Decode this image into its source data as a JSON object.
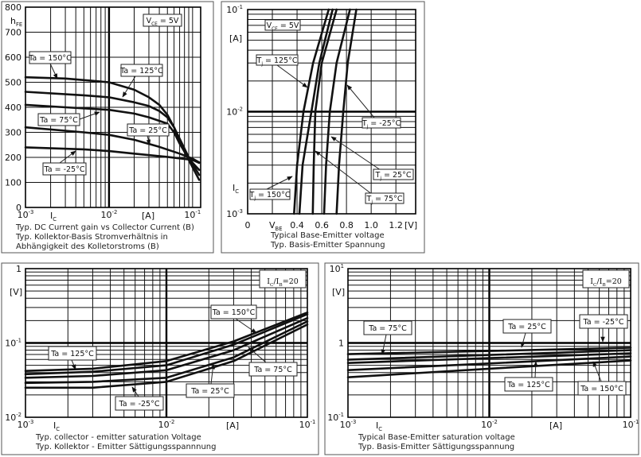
{
  "chart_data": [
    {
      "type": "line",
      "xscale": "log",
      "yscale": "linear",
      "xlim": [
        0.001,
        0.125
      ],
      "ylim": [
        0,
        800
      ],
      "grid": true,
      "xlabel": [
        {
          "t": "I"
        },
        {
          "t": "C",
          "s": "sub"
        }
      ],
      "xunit": "[A]",
      "ylabel": [
        {
          "t": "h"
        },
        {
          "t": "FE",
          "s": "sub"
        }
      ],
      "xticks": [
        {
          "value": 0.001,
          "label": [
            {
              "t": "10"
            },
            {
              "t": "-3",
              "s": "sup"
            }
          ]
        },
        {
          "value": 0.01,
          "label": [
            {
              "t": "10"
            },
            {
              "t": "-2",
              "s": "sup"
            }
          ]
        },
        {
          "value": 0.1,
          "label": [
            {
              "t": "10"
            },
            {
              "t": "-1",
              "s": "sup"
            }
          ]
        }
      ],
      "yticks": [
        {
          "value": 0,
          "label": "0"
        },
        {
          "value": 100,
          "label": "100"
        },
        {
          "value": 200,
          "label": "200"
        },
        {
          "value": 300,
          "label": "300"
        },
        {
          "value": 400,
          "label": "400"
        },
        {
          "value": 500,
          "label": "500"
        },
        {
          "value": 600,
          "label": "600"
        },
        {
          "value": 700,
          "label": "700"
        },
        {
          "value": 800,
          "label": "800"
        }
      ],
      "annotation": [
        {
          "t": "V"
        },
        {
          "t": "CE",
          "s": "sub"
        },
        {
          "t": " = 5V"
        }
      ],
      "series": [
        {
          "name": [
            {
              "t": "Ta = 150°C"
            }
          ],
          "points": [
            [
              0.001,
              520
            ],
            [
              0.003,
              515
            ],
            [
              0.01,
              500
            ],
            [
              0.02,
              470
            ],
            [
              0.03,
              440
            ],
            [
              0.04,
              410
            ],
            [
              0.05,
              370
            ],
            [
              0.06,
              320
            ],
            [
              0.07,
              260
            ],
            [
              0.09,
              190
            ],
            [
              0.12,
              110
            ]
          ]
        },
        {
          "name": [
            {
              "t": "Ta = 125°C"
            }
          ],
          "points": [
            [
              0.001,
              462
            ],
            [
              0.005,
              448
            ],
            [
              0.01,
              440
            ],
            [
              0.02,
              420
            ],
            [
              0.03,
              405
            ],
            [
              0.04,
              385
            ],
            [
              0.05,
              360
            ],
            [
              0.06,
              320
            ],
            [
              0.07,
              275
            ],
            [
              0.09,
              200
            ],
            [
              0.12,
              130
            ]
          ]
        },
        {
          "name": [
            {
              "t": "Ta = 75°C"
            }
          ],
          "points": [
            [
              0.001,
              410
            ],
            [
              0.003,
              400
            ],
            [
              0.01,
              390
            ],
            [
              0.02,
              375
            ],
            [
              0.03,
              360
            ],
            [
              0.05,
              335
            ],
            [
              0.06,
              300
            ],
            [
              0.07,
              255
            ],
            [
              0.09,
              195
            ],
            [
              0.12,
              150
            ]
          ]
        },
        {
          "name": [
            {
              "t": "Ta = 25°C"
            }
          ],
          "points": [
            [
              0.001,
              320
            ],
            [
              0.005,
              300
            ],
            [
              0.01,
              290
            ],
            [
              0.02,
              270
            ],
            [
              0.04,
              242
            ],
            [
              0.07,
              215
            ],
            [
              0.1,
              195
            ],
            [
              0.12,
              180
            ]
          ]
        },
        {
          "name": [
            {
              "t": "Ta = -25°C"
            }
          ],
          "points": [
            [
              0.001,
              240
            ],
            [
              0.005,
              232
            ],
            [
              0.01,
              225
            ],
            [
              0.02,
              215
            ],
            [
              0.05,
              202
            ],
            [
              0.1,
              190
            ],
            [
              0.12,
              178
            ]
          ]
        }
      ],
      "caption": [
        "Typ. DC Current gain vs Collector Current (B)",
        "Typ. Kollektor-Basis Stromverhältnis in",
        "Abhängigkeit des Kolletorstroms (B)"
      ]
    },
    {
      "type": "line",
      "xscale": "linear",
      "yscale": "log",
      "xlim": [
        0,
        1.36
      ],
      "ylim": [
        0.001,
        0.1
      ],
      "grid": true,
      "xlabel": [
        {
          "t": "V"
        },
        {
          "t": "BE",
          "s": "sub"
        }
      ],
      "xunit": "[V]",
      "ylabel": [
        {
          "t": "I"
        },
        {
          "t": "C",
          "s": "sub"
        }
      ],
      "yunit": "[A]",
      "xticks": [
        {
          "value": 0,
          "label": "0"
        },
        {
          "value": 0.4,
          "label": "0.4"
        },
        {
          "value": 0.6,
          "label": "0.6"
        },
        {
          "value": 0.8,
          "label": "0.8"
        },
        {
          "value": 1.0,
          "label": "1.0"
        },
        {
          "value": 1.2,
          "label": "1.2"
        }
      ],
      "yticks": [
        {
          "value": 0.1,
          "label": [
            {
              "t": "10"
            },
            {
              "t": "-1",
              "s": "sup"
            }
          ]
        },
        {
          "value": 0.01,
          "label": [
            {
              "t": "10"
            },
            {
              "t": "-2",
              "s": "sup"
            }
          ]
        },
        {
          "value": 0.001,
          "label": [
            {
              "t": "10"
            },
            {
              "t": "-3",
              "s": "sup"
            }
          ]
        }
      ],
      "annotation": [
        {
          "t": "V"
        },
        {
          "t": "CE",
          "s": "sub"
        },
        {
          "t": " = 5V"
        }
      ],
      "series": [
        {
          "name": [
            {
              "t": "T"
            },
            {
              "t": "j",
              "s": "sub"
            },
            {
              "t": " = 150°C"
            }
          ],
          "points": [
            [
              0.376,
              0.001
            ],
            [
              0.4,
              0.003
            ],
            [
              0.452,
              0.01
            ],
            [
              0.53,
              0.03
            ],
            [
              0.656,
              0.1
            ]
          ]
        },
        {
          "name": [
            {
              "t": "T"
            },
            {
              "t": "j",
              "s": "sub"
            },
            {
              "t": " = 125°C"
            }
          ],
          "points": [
            [
              0.419,
              0.001
            ],
            [
              0.445,
              0.003
            ],
            [
              0.516,
              0.01
            ],
            [
              0.58,
              0.03
            ],
            [
              0.688,
              0.1
            ]
          ]
        },
        {
          "name": [
            {
              "t": "T"
            },
            {
              "t": "j",
              "s": "sub"
            },
            {
              "t": " = 75°C"
            }
          ],
          "points": [
            [
              0.527,
              0.001
            ],
            [
              0.535,
              0.003
            ],
            [
              0.548,
              0.01
            ],
            [
              0.6,
              0.03
            ],
            [
              0.72,
              0.1
            ]
          ]
        },
        {
          "name": [
            {
              "t": "T"
            },
            {
              "t": "j",
              "s": "sub"
            },
            {
              "t": " = 25°C"
            }
          ],
          "points": [
            [
              0.619,
              0.001
            ],
            [
              0.635,
              0.003
            ],
            [
              0.665,
              0.01
            ],
            [
              0.72,
              0.03
            ],
            [
              0.828,
              0.1
            ]
          ]
        },
        {
          "name": [
            {
              "t": "T"
            },
            {
              "t": "j",
              "s": "sub"
            },
            {
              "t": " = -25°C"
            }
          ],
          "points": [
            [
              0.72,
              0.001
            ],
            [
              0.74,
              0.003
            ],
            [
              0.774,
              0.01
            ],
            [
              0.81,
              0.03
            ],
            [
              0.88,
              0.1
            ]
          ]
        }
      ],
      "caption": [
        "Typical Base-Emitter voltage",
        "Typ. Basis-Emitter Spannung"
      ]
    },
    {
      "type": "line",
      "xscale": "log",
      "yscale": "log",
      "xlim": [
        0.001,
        0.1
      ],
      "ylim": [
        0.01,
        1
      ],
      "grid": true,
      "xlabel": [
        {
          "t": "I"
        },
        {
          "t": "C",
          "s": "sub"
        }
      ],
      "xunit": "[A]",
      "yunit": "[V]",
      "xticks": [
        {
          "value": 0.001,
          "label": [
            {
              "t": "10"
            },
            {
              "t": "-3",
              "s": "sup"
            }
          ]
        },
        {
          "value": 0.01,
          "label": [
            {
              "t": "10"
            },
            {
              "t": "-2",
              "s": "sup"
            }
          ]
        },
        {
          "value": 0.1,
          "label": [
            {
              "t": "10"
            },
            {
              "t": "-1",
              "s": "sup"
            }
          ]
        }
      ],
      "yticks": [
        {
          "value": 1,
          "label": "1"
        },
        {
          "value": 0.1,
          "label": [
            {
              "t": "10"
            },
            {
              "t": "-1",
              "s": "sup"
            }
          ]
        },
        {
          "value": 0.01,
          "label": [
            {
              "t": "10"
            },
            {
              "t": "-2",
              "s": "sup"
            }
          ]
        }
      ],
      "annotation": [
        {
          "t": "I"
        },
        {
          "t": "C",
          "s": "sub"
        },
        {
          "t": "/I"
        },
        {
          "t": "B",
          "s": "sub"
        },
        {
          "t": "=20"
        }
      ],
      "series": [
        {
          "name": [
            {
              "t": "Ta = 150°C"
            }
          ],
          "points": [
            [
              0.001,
              0.042
            ],
            [
              0.003,
              0.045
            ],
            [
              0.01,
              0.057
            ],
            [
              0.03,
              0.105
            ],
            [
              0.1,
              0.257
            ]
          ]
        },
        {
          "name": [
            {
              "t": "Ta = 125°C"
            }
          ],
          "points": [
            [
              0.001,
              0.038
            ],
            [
              0.003,
              0.041
            ],
            [
              0.01,
              0.05
            ],
            [
              0.03,
              0.095
            ],
            [
              0.1,
              0.244
            ]
          ]
        },
        {
          "name": [
            {
              "t": "Ta = 75°C"
            }
          ],
          "points": [
            [
              0.001,
              0.034
            ],
            [
              0.003,
              0.036
            ],
            [
              0.01,
              0.043
            ],
            [
              0.03,
              0.08
            ],
            [
              0.1,
              0.216
            ]
          ]
        },
        {
          "name": [
            {
              "t": "Ta = 25°C"
            }
          ],
          "points": [
            [
              0.001,
              0.029
            ],
            [
              0.003,
              0.03
            ],
            [
              0.01,
              0.034
            ],
            [
              0.03,
              0.064
            ],
            [
              0.1,
              0.195
            ]
          ]
        },
        {
          "name": [
            {
              "t": "Ta = -25°C"
            }
          ],
          "points": [
            [
              0.001,
              0.025
            ],
            [
              0.003,
              0.025
            ],
            [
              0.01,
              0.03
            ],
            [
              0.03,
              0.057
            ],
            [
              0.1,
              0.177
            ]
          ]
        }
      ],
      "caption": [
        "Typ. collector - emitter saturation Voltage",
        "Typ. Kollektor - Emitter Sättigungsspannnung"
      ]
    },
    {
      "type": "line",
      "xscale": "log",
      "yscale": "log",
      "xlim": [
        0.001,
        0.1
      ],
      "ylim": [
        0.1,
        10
      ],
      "grid": true,
      "xlabel": [
        {
          "t": "I"
        },
        {
          "t": "C",
          "s": "sub"
        }
      ],
      "xunit": "[A]",
      "yunit": "[V]",
      "xticks": [
        {
          "value": 0.001,
          "label": [
            {
              "t": "10"
            },
            {
              "t": "-3",
              "s": "sup"
            }
          ]
        },
        {
          "value": 0.01,
          "label": [
            {
              "t": "10"
            },
            {
              "t": "-2",
              "s": "sup"
            }
          ]
        },
        {
          "value": 0.1,
          "label": [
            {
              "t": "10"
            },
            {
              "t": "-1",
              "s": "sup"
            }
          ]
        }
      ],
      "yticks": [
        {
          "value": 10,
          "label": [
            {
              "t": "10"
            },
            {
              "t": "1",
              "s": "sup"
            }
          ]
        },
        {
          "value": 1,
          "label": "1"
        },
        {
          "value": 0.1,
          "label": [
            {
              "t": "10"
            },
            {
              "t": "-1",
              "s": "sup"
            }
          ]
        }
      ],
      "annotation": [
        {
          "t": "I"
        },
        {
          "t": "C",
          "s": "sub"
        },
        {
          "t": "/I"
        },
        {
          "t": "B",
          "s": "sub"
        },
        {
          "t": "=20"
        }
      ],
      "series": [
        {
          "name": [
            {
              "t": "Ta = -25°C"
            }
          ],
          "points": [
            [
              0.001,
              0.707
            ],
            [
              0.01,
              0.78
            ],
            [
              0.1,
              0.862
            ]
          ]
        },
        {
          "name": [
            {
              "t": "Ta = 25°C"
            }
          ],
          "points": [
            [
              0.001,
              0.595
            ],
            [
              0.01,
              0.69
            ],
            [
              0.1,
              0.8
            ]
          ]
        },
        {
          "name": [
            {
              "t": "Ta = 75°C"
            }
          ],
          "points": [
            [
              0.001,
              0.538
            ],
            [
              0.01,
              0.625
            ],
            [
              0.1,
              0.725
            ]
          ]
        },
        {
          "name": [
            {
              "t": "Ta = 125°C"
            }
          ],
          "points": [
            [
              0.001,
              0.431
            ],
            [
              0.01,
              0.53
            ],
            [
              0.1,
              0.656
            ]
          ]
        },
        {
          "name": [
            {
              "t": "Ta = 150°C"
            }
          ],
          "points": [
            [
              0.001,
              0.345
            ],
            [
              0.01,
              0.45
            ],
            [
              0.1,
              0.58
            ]
          ]
        }
      ],
      "caption": [
        "Typical Base-Emitter saturation voltage",
        "Typ. Basis-Emitter Sättigungsspannung"
      ]
    }
  ]
}
